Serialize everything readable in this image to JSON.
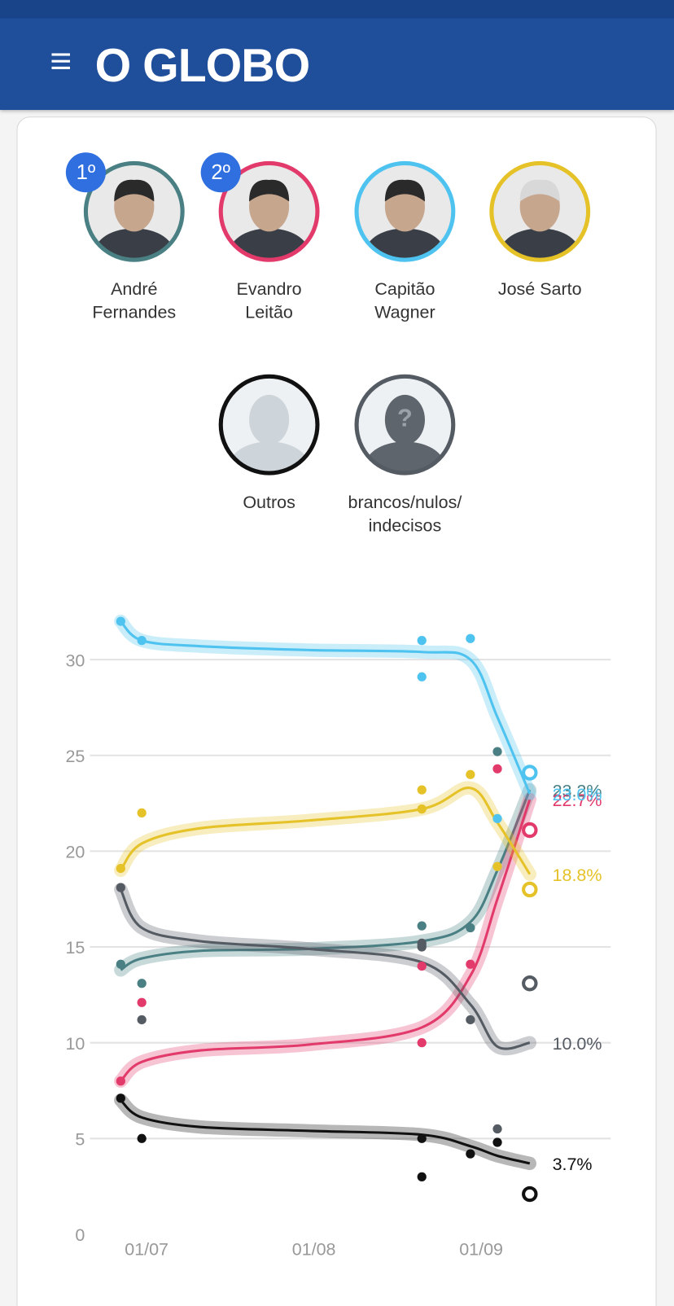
{
  "header": {
    "logo": "O GLOBO"
  },
  "chart_data": {
    "type": "line",
    "xlim": [
      -10.5,
      86
    ],
    "ylim": [
      0,
      32
    ],
    "xticks": [
      {
        "value": 0,
        "label": "01/07"
      },
      {
        "value": 31,
        "label": "01/08"
      },
      {
        "value": 62,
        "label": "01/09"
      }
    ],
    "yticks": [
      0,
      5,
      10,
      15,
      20,
      25,
      30
    ],
    "grid": true,
    "series": [
      {
        "name": "André\nFernandes",
        "badge": "1º",
        "color": "#4a8084",
        "x": [
          -4.8,
          -0.9,
          51,
          51,
          60,
          65
        ],
        "values": [
          14.1,
          13.1,
          16.1,
          15.1,
          16.0,
          25.2
        ],
        "trend_x": [
          -4.8,
          -0.9,
          10,
          30,
          51,
          60,
          65,
          71
        ],
        "trend": [
          13.8,
          14.4,
          14.8,
          14.9,
          15.3,
          16.3,
          19.0,
          23.2
        ],
        "end_label": "23.2%"
      },
      {
        "name": "Evandro\nLeitão",
        "badge": "2º",
        "color": "#e23a6b",
        "x": [
          -4.8,
          -0.9,
          51,
          51,
          60,
          65,
          71
        ],
        "values": [
          8.0,
          12.1,
          10.0,
          14.0,
          14.1,
          24.3,
          21.1
        ],
        "latest": [
          false,
          false,
          false,
          false,
          false,
          false,
          true
        ],
        "trend_x": [
          -4.8,
          -0.9,
          10,
          30,
          51,
          60,
          65,
          71
        ],
        "trend": [
          8.0,
          9.0,
          9.6,
          9.9,
          10.8,
          13.5,
          17.5,
          22.7
        ],
        "end_label": "22.7%"
      },
      {
        "name": "Capitão\nWagner",
        "color": "#4fc3f0",
        "x": [
          -4.8,
          -0.9,
          51,
          51,
          60,
          65,
          71
        ],
        "values": [
          32.0,
          31.0,
          31.0,
          29.1,
          31.1,
          21.7,
          24.1
        ],
        "latest": [
          false,
          false,
          false,
          false,
          false,
          false,
          true
        ],
        "trend_x": [
          -4.8,
          -0.9,
          10,
          30,
          51,
          60,
          65,
          71
        ],
        "trend": [
          32.0,
          31.0,
          30.7,
          30.5,
          30.4,
          30.0,
          27.0,
          23.0
        ],
        "end_label": "23.0%"
      },
      {
        "name": "José Sarto",
        "color": "#e6c229",
        "x": [
          -4.8,
          -0.9,
          51,
          51,
          60,
          65,
          71
        ],
        "values": [
          19.1,
          22.0,
          23.2,
          22.2,
          24.0,
          19.2,
          18.0
        ],
        "latest": [
          false,
          false,
          false,
          false,
          false,
          false,
          true
        ],
        "trend_x": [
          -4.8,
          -0.9,
          10,
          30,
          51,
          60,
          65,
          71
        ],
        "trend": [
          19.0,
          20.4,
          21.2,
          21.6,
          22.2,
          23.3,
          21.5,
          18.8
        ],
        "end_label": "18.8%"
      },
      {
        "name": "Outros",
        "color": "#111111",
        "x": [
          -4.8,
          -0.9,
          51,
          51,
          60,
          65,
          71
        ],
        "values": [
          7.1,
          5.0,
          5.0,
          3.0,
          4.2,
          4.8,
          2.1
        ],
        "latest": [
          false,
          false,
          false,
          false,
          false,
          false,
          true
        ],
        "trend_x": [
          -4.8,
          -0.9,
          10,
          30,
          51,
          60,
          65,
          71
        ],
        "trend": [
          7.0,
          6.1,
          5.6,
          5.4,
          5.2,
          4.6,
          4.1,
          3.7
        ],
        "end_label": "3.7%"
      },
      {
        "name": "brancos/nulos/\nindecisos",
        "color": "#555b63",
        "x": [
          -4.8,
          -0.9,
          51,
          51,
          60,
          65,
          71
        ],
        "values": [
          18.1,
          11.2,
          15.0,
          15.2,
          11.2,
          5.5,
          13.1
        ],
        "latest": [
          false,
          false,
          false,
          false,
          false,
          false,
          true
        ],
        "trend_x": [
          -4.8,
          -0.9,
          10,
          30,
          51,
          60,
          65,
          71
        ],
        "trend": [
          18.0,
          16.0,
          15.3,
          14.9,
          14.2,
          12.0,
          9.8,
          10.0
        ],
        "end_label": "10.0%"
      }
    ]
  }
}
